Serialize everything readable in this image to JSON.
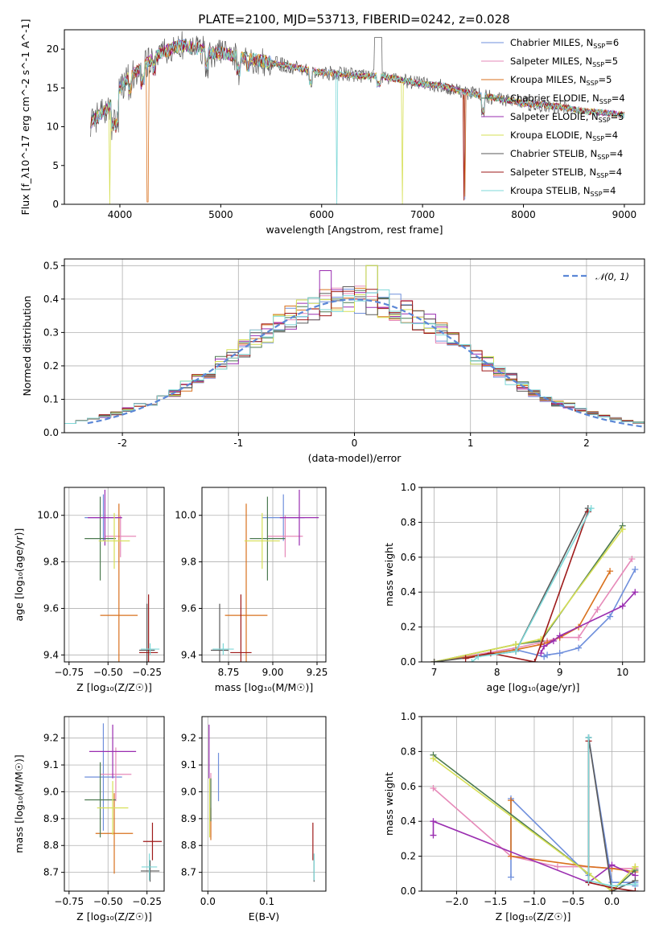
{
  "figure": {
    "title": "PLATE=2100, MJD=53713, FIBERID=0242, z=0.028"
  },
  "colors": [
    "#6f8fdc",
    "#e68ab9",
    "#d9711e",
    "#4c7a50",
    "#9a2db0",
    "#d6df55",
    "#5a5a5a",
    "#9e1a1a",
    "#7ed8d8"
  ],
  "chart_data": [
    {
      "id": "spectrum",
      "type": "line",
      "xlabel": "wavelength [Angstrom, rest frame]",
      "ylabel": "Flux [f_λ10^-17 erg cm^-2 s^-1 A^-1]",
      "xlim": [
        3450,
        9200
      ],
      "ylim": [
        0,
        22.5
      ],
      "xticks": [
        4000,
        5000,
        6000,
        7000,
        8000,
        9000
      ],
      "yticks": [
        0,
        5,
        10,
        15,
        20
      ],
      "grid": false,
      "legend": "top-right",
      "data_x": [
        3700,
        3800,
        3900,
        4000,
        4100,
        4200,
        4300,
        4400,
        4500,
        4600,
        4700,
        4800,
        4900,
        5000,
        5200,
        5400,
        5600,
        5800,
        6000,
        6200,
        6400,
        6600,
        6800,
        7000,
        7200,
        7400,
        7600,
        7800,
        8000,
        8200,
        8400,
        8600,
        8800,
        9000
      ],
      "data_y": [
        10.5,
        11.5,
        12.5,
        15.0,
        16.5,
        17.5,
        18.5,
        19.5,
        20.0,
        20.5,
        20.3,
        20.0,
        19.5,
        19.5,
        19.0,
        18.5,
        18.0,
        17.5,
        17.0,
        16.8,
        16.5,
        16.5,
        16.0,
        15.5,
        15.3,
        14.5,
        14.0,
        13.5,
        13.0,
        12.8,
        12.5,
        12.0,
        11.8,
        11.5
      ],
      "legend_entries": [
        {
          "pre": "Chabrier MILES, N",
          "sub": "SSP",
          "post": "=6"
        },
        {
          "pre": "Salpeter MILES, N",
          "sub": "SSP",
          "post": "=5"
        },
        {
          "pre": "Kroupa MILES, N",
          "sub": "SSP",
          "post": "=5"
        },
        {
          "pre": "Chabrier ELODIE, N",
          "sub": "SSP",
          "post": "=4"
        },
        {
          "pre": "Salpeter ELODIE, N",
          "sub": "SSP",
          "post": "=5"
        },
        {
          "pre": "Kroupa ELODIE, N",
          "sub": "SSP",
          "post": "=4"
        },
        {
          "pre": "Chabrier STELIB, N",
          "sub": "SSP",
          "post": "=4"
        },
        {
          "pre": "Salpeter STELIB, N",
          "sub": "SSP",
          "post": "=4"
        },
        {
          "pre": "Kroupa STELIB, N",
          "sub": "SSP",
          "post": "=4"
        }
      ]
    },
    {
      "id": "residuals",
      "type": "line",
      "xlabel": "(data-model)/error",
      "ylabel": "Normed distribution",
      "xlim": [
        -2.5,
        2.5
      ],
      "ylim": [
        0,
        0.52
      ],
      "xticks": [
        -2,
        -1,
        0,
        1,
        2
      ],
      "yticks": [
        0.0,
        0.1,
        0.2,
        0.3,
        0.4,
        0.5
      ],
      "grid": true,
      "legend": "top-right",
      "legend_label": "𝒩(0, 1)",
      "bin_width": 0.1,
      "bin_start": -2.5
    },
    {
      "id": "age-vs-Z",
      "type": "scatter",
      "xlabel": "Z [log₁₀(Z/Z☉)]",
      "ylabel": "age  [log₁₀(age/yr)]",
      "xlim": [
        -0.78,
        -0.14
      ],
      "ylim": [
        9.37,
        10.12
      ],
      "xticks": [
        -0.75,
        -0.5,
        -0.25
      ],
      "xticklabels": [
        "−0.75",
        "−0.50",
        "−0.25"
      ],
      "yticks": [
        9.4,
        9.6,
        9.8,
        10.0
      ],
      "grid": true,
      "points": [
        {
          "x": -0.53,
          "y": 9.99,
          "xerr": 0.12,
          "yerr": 0.1
        },
        {
          "x": -0.42,
          "y": 9.91,
          "xerr": 0.1,
          "yerr": 0.09
        },
        {
          "x": -0.43,
          "y": 9.57,
          "xerr": 0.12,
          "yerr": 0.48
        },
        {
          "x": -0.55,
          "y": 9.9,
          "xerr": 0.1,
          "yerr": 0.18
        },
        {
          "x": -0.52,
          "y": 9.99,
          "xerr": 0.11,
          "yerr": 0.12
        },
        {
          "x": -0.46,
          "y": 9.89,
          "xerr": 0.1,
          "yerr": 0.12
        },
        {
          "x": -0.25,
          "y": 9.42,
          "xerr": 0.05,
          "yerr": 0.2
        },
        {
          "x": -0.24,
          "y": 9.41,
          "xerr": 0.06,
          "yerr": 0.25
        },
        {
          "x": -0.23,
          "y": 9.425,
          "xerr": 0.06,
          "yerr": 0.025
        }
      ]
    },
    {
      "id": "age-vs-mass",
      "type": "scatter",
      "xlabel": "mass [log₁₀(M/M☉)]",
      "ylabel": "",
      "xlim": [
        8.6,
        9.3
      ],
      "ylim": [
        9.37,
        10.12
      ],
      "xticks": [
        8.75,
        9.0,
        9.25
      ],
      "xticklabels": [
        "8.75",
        "9.00",
        "9.25"
      ],
      "yticks": [
        9.4,
        9.6,
        9.8,
        10.0
      ],
      "grid": true,
      "points": [
        {
          "x": 9.06,
          "y": 9.99,
          "xerr": 0.12,
          "yerr": 0.1
        },
        {
          "x": 9.07,
          "y": 9.91,
          "xerr": 0.1,
          "yerr": 0.09
        },
        {
          "x": 8.85,
          "y": 9.57,
          "xerr": 0.12,
          "yerr": 0.48
        },
        {
          "x": 8.97,
          "y": 9.9,
          "xerr": 0.1,
          "yerr": 0.18
        },
        {
          "x": 9.15,
          "y": 9.99,
          "xerr": 0.11,
          "yerr": 0.12
        },
        {
          "x": 8.94,
          "y": 9.89,
          "xerr": 0.1,
          "yerr": 0.12
        },
        {
          "x": 8.7,
          "y": 9.42,
          "xerr": 0.05,
          "yerr": 0.2
        },
        {
          "x": 8.82,
          "y": 9.41,
          "xerr": 0.06,
          "yerr": 0.25
        },
        {
          "x": 8.72,
          "y": 9.425,
          "xerr": 0.06,
          "yerr": 0.025
        }
      ]
    },
    {
      "id": "weight-vs-age",
      "type": "line",
      "xlabel": "age  [log₁₀(age/yr)]",
      "ylabel": "mass weight",
      "xlim": [
        6.8,
        10.35
      ],
      "ylim": [
        0,
        1.0
      ],
      "xticks": [
        7,
        8,
        9,
        10
      ],
      "yticks": [
        0.0,
        0.2,
        0.4,
        0.6,
        0.8,
        1.0
      ],
      "grid": true,
      "series": [
        {
          "x": [
            7.0,
            8.3,
            8.75,
            8.8,
            9.0,
            9.3,
            9.8,
            10.2
          ],
          "y": [
            0.0,
            0.07,
            0.03,
            0.04,
            0.05,
            0.08,
            0.26,
            0.53
          ]
        },
        {
          "x": [
            7.0,
            8.3,
            8.8,
            9.0,
            9.3,
            9.6,
            10.15
          ],
          "y": [
            0.0,
            0.08,
            0.12,
            0.14,
            0.14,
            0.3,
            0.59
          ]
        },
        {
          "x": [
            7.0,
            8.3,
            8.7,
            8.8,
            9.0,
            9.3,
            9.8
          ],
          "y": [
            0.0,
            0.07,
            0.1,
            0.11,
            0.14,
            0.2,
            0.52
          ]
        },
        {
          "x": [
            7.0,
            8.3,
            8.7,
            10.0
          ],
          "y": [
            0.0,
            0.1,
            0.12,
            0.78
          ]
        },
        {
          "x": [
            8.7,
            8.75,
            8.9,
            9.0,
            10.0,
            10.2
          ],
          "y": [
            0.05,
            0.09,
            0.12,
            0.15,
            0.32,
            0.4
          ]
        },
        {
          "x": [
            7.0,
            8.3,
            8.7,
            10.0
          ],
          "y": [
            0.0,
            0.1,
            0.13,
            0.76
          ]
        },
        {
          "x": [
            7.0,
            8.3,
            9.45
          ],
          "y": [
            0.0,
            0.06,
            0.88
          ]
        },
        {
          "x": [
            7.5,
            7.9,
            8.6,
            9.45
          ],
          "y": [
            0.02,
            0.05,
            0.0,
            0.86
          ]
        },
        {
          "x": [
            7.6,
            7.7,
            8.3,
            9.5
          ],
          "y": [
            0.0,
            0.03,
            0.06,
            0.88
          ]
        }
      ]
    },
    {
      "id": "mass-vs-Z",
      "type": "scatter",
      "xlabel": "Z [log₁₀(Z/Z☉)]",
      "ylabel": "mass [log₁₀(M/M☉)]",
      "xlim": [
        -0.78,
        -0.14
      ],
      "ylim": [
        8.63,
        9.28
      ],
      "xticks": [
        -0.75,
        -0.5,
        -0.25
      ],
      "xticklabels": [
        "−0.75",
        "−0.50",
        "−0.25"
      ],
      "yticks": [
        8.7,
        8.8,
        8.9,
        9.0,
        9.1,
        9.2
      ],
      "grid": true,
      "points": [
        {
          "x": -0.53,
          "y": 9.055,
          "xerr": 0.12,
          "yerr": 0.2
        },
        {
          "x": -0.45,
          "y": 9.065,
          "xerr": 0.1,
          "yerr": 0.1
        },
        {
          "x": -0.46,
          "y": 8.845,
          "xerr": 0.12,
          "yerr": 0.15
        },
        {
          "x": -0.55,
          "y": 8.97,
          "xerr": 0.1,
          "yerr": 0.14
        },
        {
          "x": -0.47,
          "y": 9.15,
          "xerr": 0.15,
          "yerr": 0.1
        },
        {
          "x": -0.47,
          "y": 8.94,
          "xerr": 0.1,
          "yerr": 0.1
        },
        {
          "x": -0.23,
          "y": 8.705,
          "xerr": 0.06,
          "yerr": 0.04
        },
        {
          "x": -0.215,
          "y": 8.815,
          "xerr": 0.06,
          "yerr": 0.07
        },
        {
          "x": -0.235,
          "y": 8.72,
          "xerr": 0.05,
          "yerr": 0.05
        }
      ]
    },
    {
      "id": "mass-vs-EBV",
      "type": "scatter",
      "xlabel": "E(B-V)",
      "ylabel": "",
      "xlim": [
        -0.01,
        0.2
      ],
      "ylim": [
        8.63,
        9.28
      ],
      "xticks": [
        0.0,
        0.1
      ],
      "xticklabels": [
        "0.0",
        "0.1"
      ],
      "yticks": [
        8.7,
        8.8,
        8.9,
        9.0,
        9.1,
        9.2
      ],
      "grid": true,
      "points": [
        {
          "x": 0.018,
          "y": 9.055,
          "xerr": 0,
          "yerr": 0.09
        },
        {
          "x": 0.005,
          "y": 8.95,
          "xerr": 0,
          "yerr": 0.12
        },
        {
          "x": 0.005,
          "y": 8.88,
          "xerr": 0,
          "yerr": 0.06
        },
        {
          "x": 0.005,
          "y": 8.97,
          "xerr": 0,
          "yerr": 0.08
        },
        {
          "x": 0.002,
          "y": 9.15,
          "xerr": 0,
          "yerr": 0.1
        },
        {
          "x": 0.003,
          "y": 8.94,
          "xerr": 0,
          "yerr": 0.11
        },
        {
          "x": 0.18,
          "y": 8.705,
          "xerr": 0,
          "yerr": 0.04
        },
        {
          "x": 0.178,
          "y": 8.815,
          "xerr": 0,
          "yerr": 0.07
        },
        {
          "x": 0.18,
          "y": 8.72,
          "xerr": 0,
          "yerr": 0.05
        }
      ]
    },
    {
      "id": "weight-vs-Z",
      "type": "line",
      "xlabel": "Z [log₁₀(Z/Z☉)]",
      "ylabel": "mass weight",
      "xlim": [
        -2.45,
        0.42
      ],
      "ylim": [
        0,
        1.0
      ],
      "xticks": [
        -2.0,
        -1.5,
        -1.0,
        -0.5,
        0.0
      ],
      "xticklabels": [
        "−2.0",
        "−1.5",
        "−1.0",
        "−0.5",
        "0.0"
      ],
      "yticks": [
        0.0,
        0.2,
        0.4,
        0.6,
        0.8,
        1.0
      ],
      "grid": true,
      "series": [
        {
          "x": [
            -1.3,
            -1.3,
            -0.3,
            -0.3,
            0.0,
            0.3,
            0.3
          ],
          "y": [
            0.08,
            0.53,
            0.09,
            0.88,
            0.05,
            0.05,
            0.03
          ]
        },
        {
          "x": [
            -2.3,
            -1.3,
            -0.7,
            -0.3,
            0.0,
            0.3
          ],
          "y": [
            0.59,
            0.2,
            0.14,
            0.14,
            0.13,
            0.13
          ]
        },
        {
          "x": [
            -1.3,
            -1.3,
            -0.3,
            0.0,
            0.3,
            0.3
          ],
          "y": [
            0.52,
            0.2,
            0.14,
            0.13,
            0.11,
            0.14
          ]
        },
        {
          "x": [
            -2.3,
            -0.3,
            0.0,
            0.3
          ],
          "y": [
            0.78,
            0.1,
            0.0,
            0.12
          ]
        },
        {
          "x": [
            -2.3,
            -2.3,
            -0.3,
            0.0,
            0.3
          ],
          "y": [
            0.32,
            0.4,
            0.05,
            0.15,
            0.09
          ]
        },
        {
          "x": [
            -2.3,
            -0.3,
            0.0,
            0.3
          ],
          "y": [
            0.76,
            0.1,
            0.0,
            0.14
          ]
        },
        {
          "x": [
            -0.3,
            -0.3,
            0.0,
            0.3
          ],
          "y": [
            0.06,
            0.88,
            0.0,
            0.06
          ]
        },
        {
          "x": [
            -0.3,
            -0.3,
            0.0,
            0.3
          ],
          "y": [
            0.86,
            0.05,
            0.02,
            0.0
          ]
        },
        {
          "x": [
            -0.3,
            -0.3,
            0.0,
            0.3
          ],
          "y": [
            0.88,
            0.06,
            0.03,
            0.04
          ]
        }
      ]
    }
  ]
}
